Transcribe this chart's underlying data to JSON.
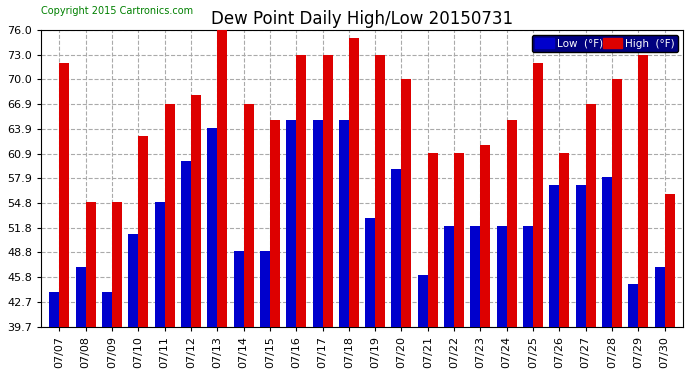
{
  "title": "Dew Point Daily High/Low 20150731",
  "copyright": "Copyright 2015 Cartronics.com",
  "yticks": [
    39.7,
    42.7,
    45.8,
    48.8,
    51.8,
    54.8,
    57.9,
    60.9,
    63.9,
    66.9,
    70.0,
    73.0,
    76.0
  ],
  "ylim": [
    39.7,
    76.0
  ],
  "dates": [
    "07/07",
    "07/08",
    "07/09",
    "07/10",
    "07/11",
    "07/12",
    "07/13",
    "07/14",
    "07/15",
    "07/16",
    "07/17",
    "07/18",
    "07/19",
    "07/20",
    "07/21",
    "07/22",
    "07/23",
    "07/24",
    "07/25",
    "07/26",
    "07/27",
    "07/28",
    "07/29",
    "07/30"
  ],
  "low": [
    44.0,
    47.0,
    44.0,
    51.0,
    55.0,
    60.0,
    64.0,
    49.0,
    49.0,
    65.0,
    65.0,
    65.0,
    53.0,
    59.0,
    46.0,
    52.0,
    52.0,
    52.0,
    52.0,
    57.0,
    57.0,
    58.0,
    45.0,
    47.0
  ],
  "high": [
    72.0,
    55.0,
    55.0,
    63.0,
    67.0,
    68.0,
    76.0,
    67.0,
    65.0,
    73.0,
    73.0,
    75.0,
    73.0,
    70.0,
    61.0,
    61.0,
    62.0,
    65.0,
    72.0,
    61.0,
    67.0,
    70.0,
    73.0,
    56.0
  ],
  "low_color": "#0000cc",
  "high_color": "#dd0000",
  "bg_color": "#ffffff",
  "plot_bg_color": "#ffffff",
  "grid_color": "#aaaaaa",
  "title_fontsize": 12,
  "tick_fontsize": 8,
  "bar_width": 0.38,
  "legend_bg": "#000080",
  "legend_high_bg": "#cc0000"
}
